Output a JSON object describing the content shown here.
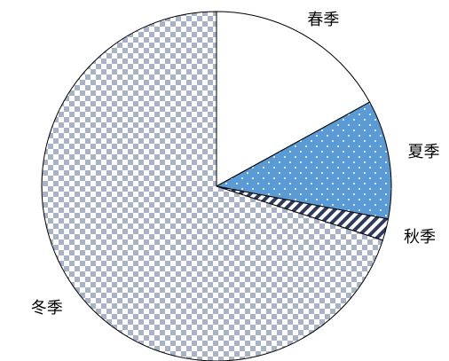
{
  "chart_data": {
    "type": "pie",
    "categories": [
      "春季",
      "夏季",
      "秋季",
      "冬季"
    ],
    "values": [
      17,
      11,
      2,
      70
    ],
    "colors": [
      "#ffffff",
      "#5b9bd5",
      "#2f3b5c",
      "#a9b3c6"
    ],
    "patterns": [
      "solid",
      "dots",
      "stripes",
      "checker"
    ],
    "start_angle": 0,
    "direction": "clockwise"
  }
}
